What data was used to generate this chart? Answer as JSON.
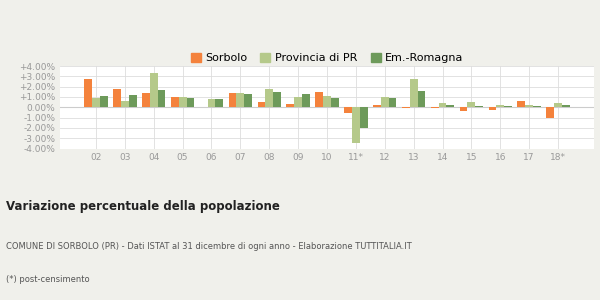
{
  "years": [
    "02",
    "03",
    "04",
    "05",
    "06",
    "07",
    "08",
    "09",
    "10",
    "11*",
    "12",
    "13",
    "14",
    "15",
    "16",
    "17",
    "18*"
  ],
  "sorbolo": [
    2.75,
    1.75,
    1.35,
    0.95,
    0.02,
    1.35,
    0.55,
    0.35,
    1.45,
    -0.55,
    0.25,
    -0.08,
    -0.05,
    -0.35,
    -0.3,
    0.65,
    -1.05
  ],
  "provincia": [
    0.85,
    0.65,
    3.35,
    0.95,
    0.8,
    1.35,
    1.75,
    0.95,
    1.05,
    -3.5,
    0.95,
    2.75,
    0.45,
    0.5,
    0.2,
    0.2,
    0.45
  ],
  "emromagna": [
    1.1,
    1.2,
    1.7,
    0.9,
    0.8,
    1.25,
    1.45,
    1.3,
    0.85,
    -2.05,
    0.85,
    1.55,
    0.2,
    0.15,
    0.1,
    0.15,
    0.2
  ],
  "color_sorbolo": "#f4823c",
  "color_provincia": "#b5c98a",
  "color_emromagna": "#6d9a5a",
  "title": "Variazione percentuale della popolazione",
  "subtitle": "COMUNE DI SORBOLO (PR) - Dati ISTAT al 31 dicembre di ogni anno - Elaborazione TUTTITALIA.IT",
  "footnote": "(*) post-censimento",
  "legend_labels": [
    "Sorbolo",
    "Provincia di PR",
    "Em.-Romagna"
  ],
  "ylim": [
    -0.04,
    0.04
  ],
  "yticks": [
    -0.04,
    -0.03,
    -0.02,
    -0.01,
    0.0,
    0.01,
    0.02,
    0.03,
    0.04
  ],
  "ytick_labels": [
    "-4.00%",
    "-3.00%",
    "-2.00%",
    "-1.00%",
    "0.00%",
    "+1.00%",
    "+2.00%",
    "+3.00%",
    "+4.00%"
  ],
  "background_color": "#f0f0eb",
  "plot_bg_color": "#ffffff",
  "grid_color": "#dddddd"
}
